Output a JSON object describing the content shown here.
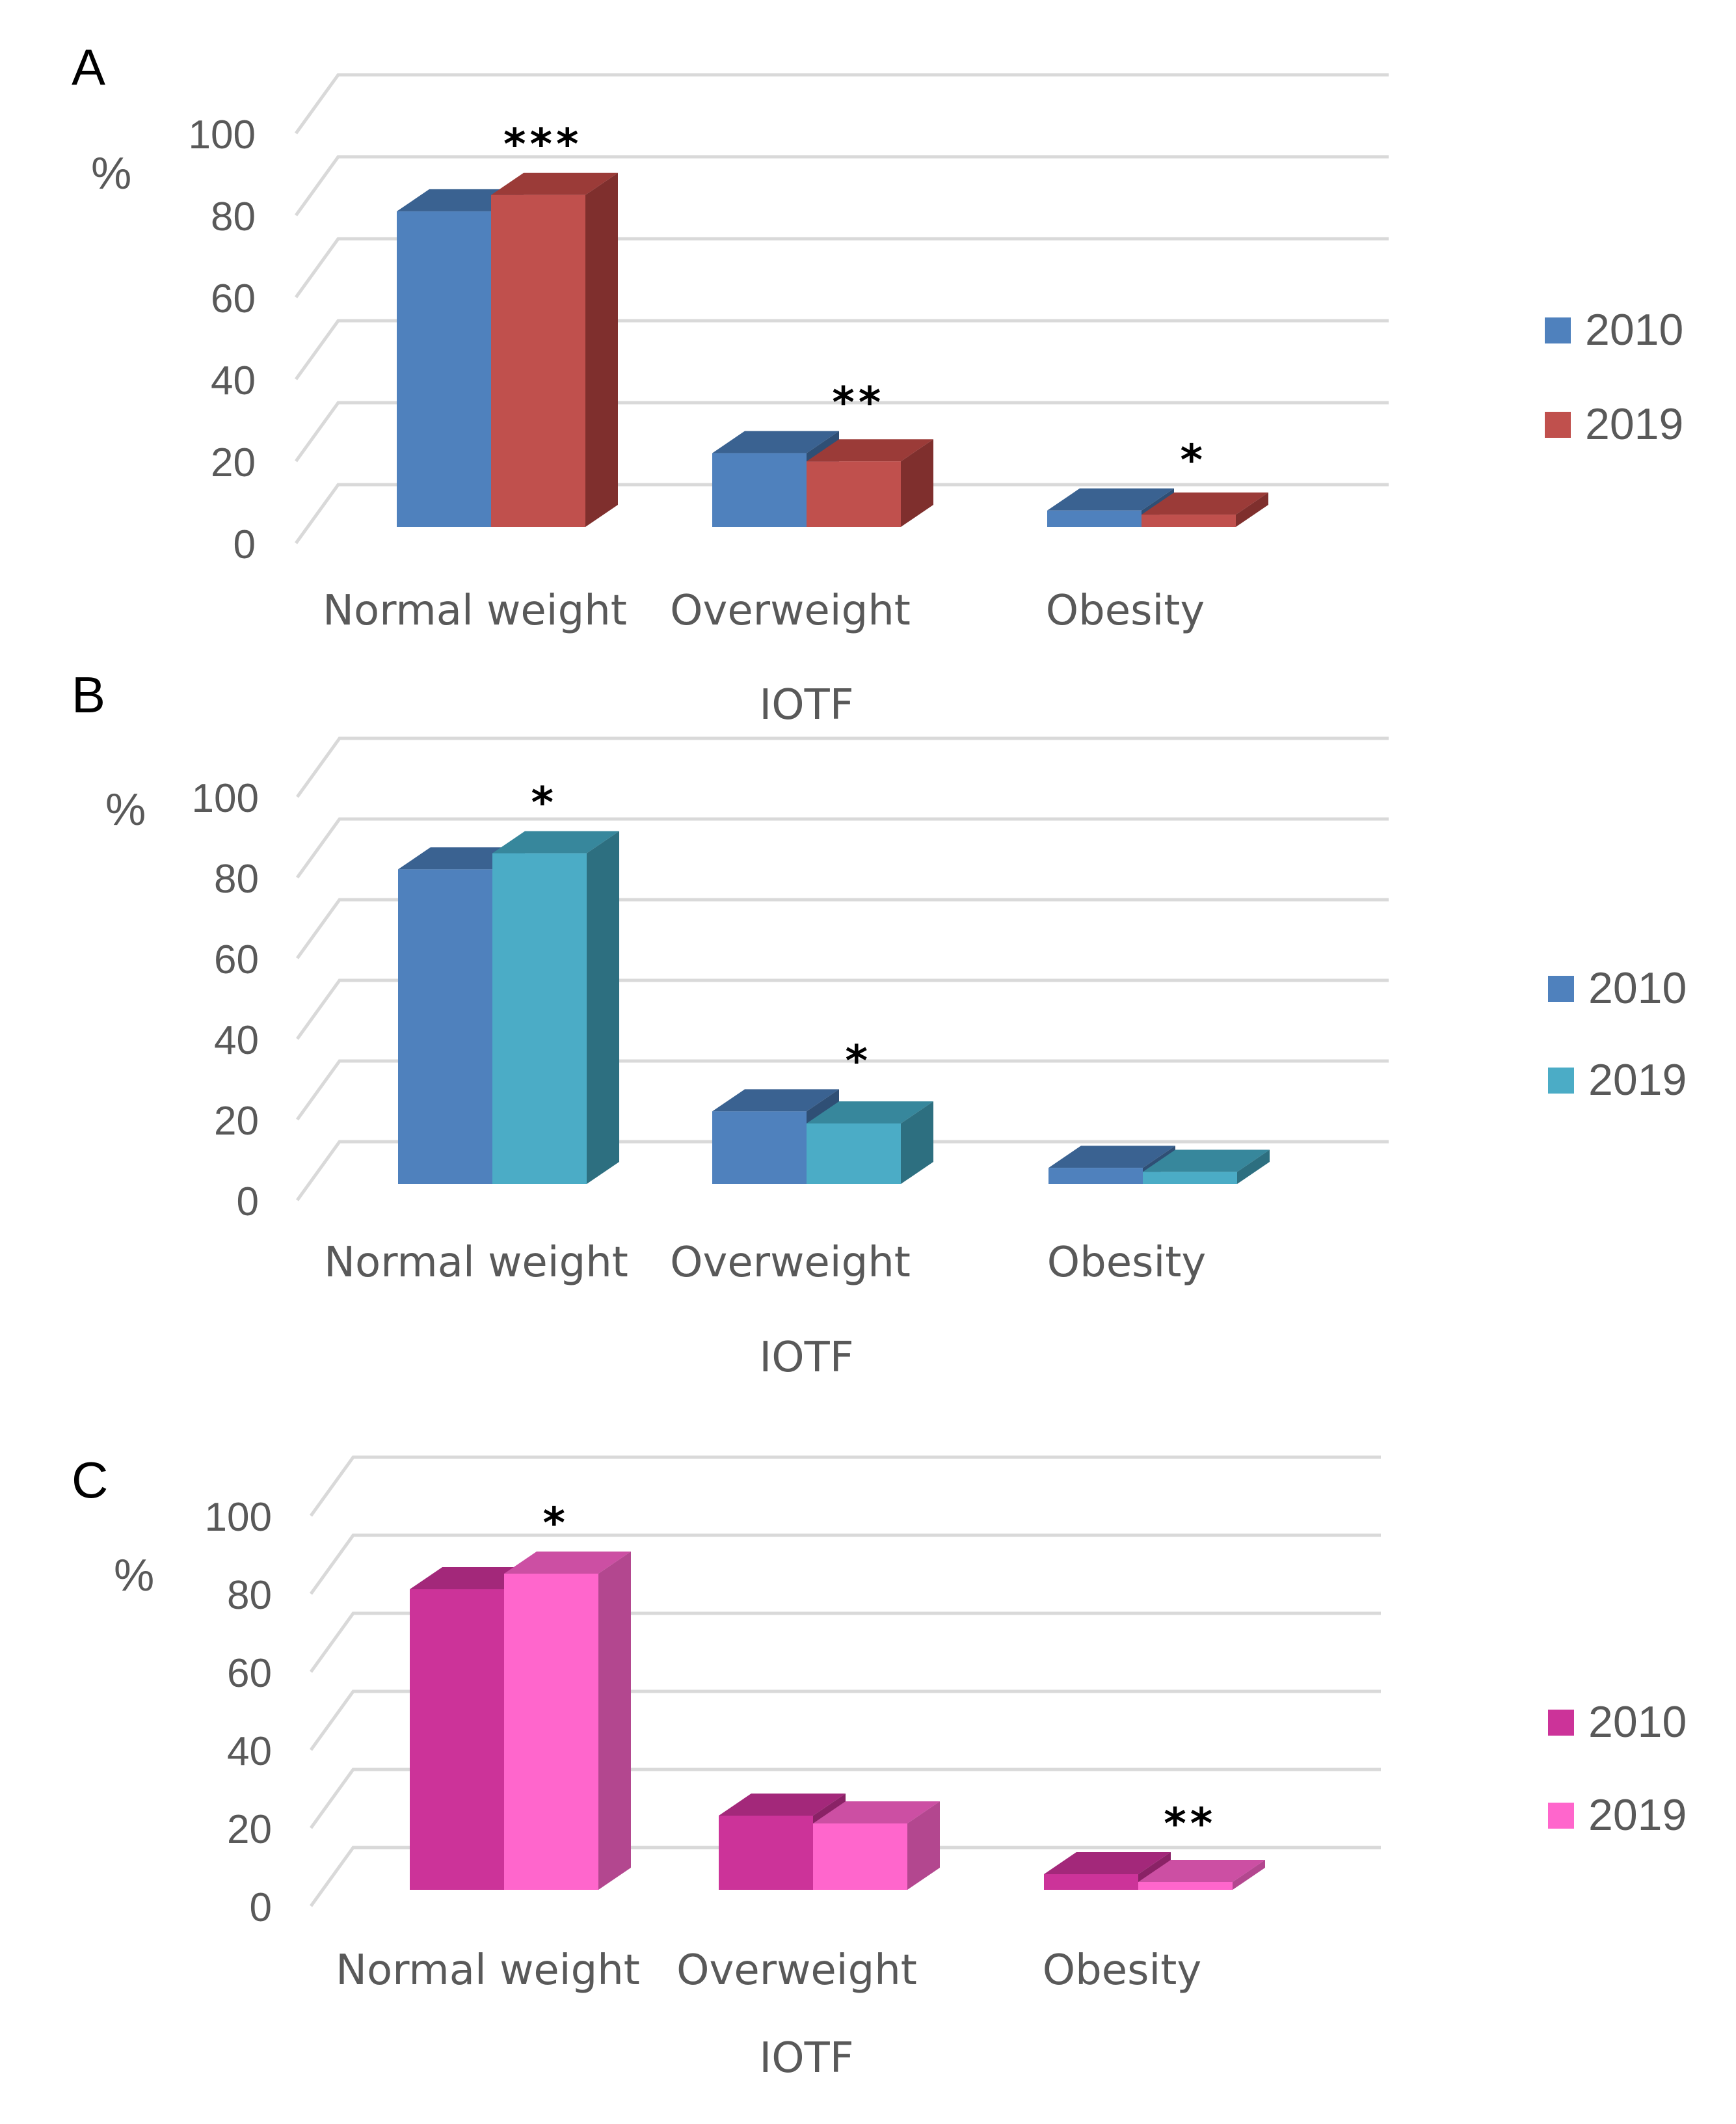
{
  "chart_data": [
    {
      "type": "bar",
      "panel": "A",
      "categories": [
        "Normal weight",
        "Overweight",
        "Obesity"
      ],
      "series": [
        {
          "name": "2010",
          "values": [
            77,
            18,
            4
          ],
          "colors": {
            "front": "#4f81bd",
            "top": "#3a6291",
            "side": "#2f4f75"
          }
        },
        {
          "name": "2019",
          "values": [
            81,
            16,
            3
          ],
          "colors": {
            "front": "#c0504d",
            "top": "#9b3b38",
            "side": "#7f2f2d"
          }
        }
      ],
      "significance": [
        "***",
        "**",
        "*"
      ],
      "ylabel": "%",
      "xlabel": "IOTF",
      "yticks": [
        "0",
        "20",
        "40",
        "60",
        "80",
        "100"
      ],
      "ylim": [
        0,
        100
      ],
      "legend": "right"
    },
    {
      "type": "bar",
      "panel": "B",
      "categories": [
        "Normal weight",
        "Overweight",
        "Obesity"
      ],
      "series": [
        {
          "name": "2010",
          "values": [
            78,
            18,
            4
          ],
          "colors": {
            "front": "#4f81bd",
            "top": "#3a6291",
            "side": "#2f4f75"
          }
        },
        {
          "name": "2019",
          "values": [
            82,
            15,
            3
          ],
          "colors": {
            "front": "#4bacc6",
            "top": "#37879c",
            "side": "#2d6f80"
          }
        }
      ],
      "significance": [
        "*",
        "*",
        ""
      ],
      "ylabel": "%",
      "xlabel": "IOTF",
      "yticks": [
        "0",
        "20",
        "40",
        "60",
        "80",
        "100"
      ],
      "ylim": [
        0,
        100
      ],
      "legend": "right"
    },
    {
      "type": "bar",
      "panel": "C",
      "categories": [
        "Normal weight",
        "Overweight",
        "Obesity"
      ],
      "series": [
        {
          "name": "2010",
          "values": [
            77,
            19,
            4
          ],
          "colors": {
            "front": "#cc3399",
            "top": "#a3287a",
            "side": "#8a2266"
          }
        },
        {
          "name": "2019",
          "values": [
            81,
            17,
            2
          ],
          "colors": {
            "front": "#ff66cc",
            "top": "#cc4fa3",
            "side": "#b3478f"
          }
        }
      ],
      "significance": [
        "*",
        "",
        "**"
      ],
      "ylabel": "%",
      "xlabel": "IOTF",
      "yticks": [
        "0",
        "20",
        "40",
        "60",
        "80",
        "100"
      ],
      "ylim": [
        0,
        100
      ],
      "legend": "right"
    }
  ]
}
